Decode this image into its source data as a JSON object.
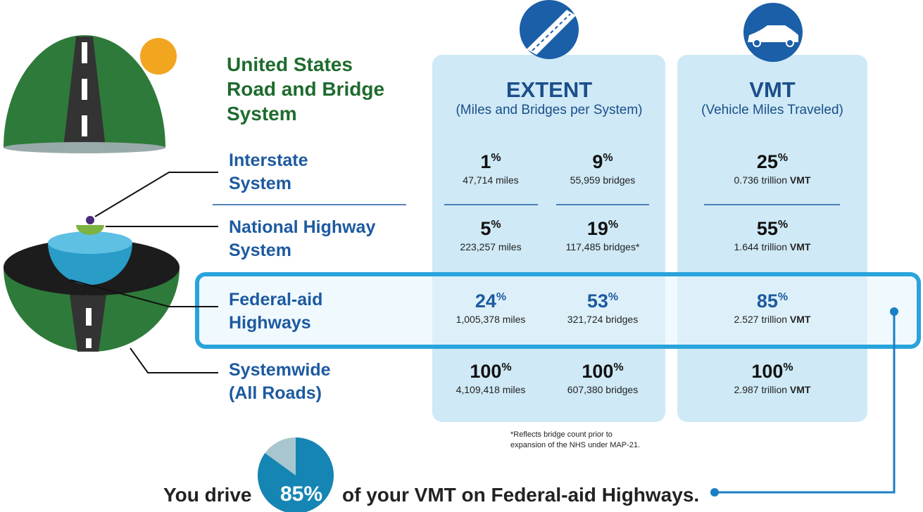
{
  "title_lines": [
    "United States",
    "Road and Bridge",
    "System"
  ],
  "percent_sign": "%",
  "columns": {
    "extent": {
      "heading": "EXTENT",
      "subheading": "(Miles and Bridges per System)"
    },
    "vmt": {
      "heading": "VMT",
      "subheading": "(Vehicle Miles Traveled)"
    }
  },
  "rows": [
    {
      "name_lines": [
        "Interstate",
        "System"
      ],
      "miles": {
        "pct": "1",
        "label": "47,714 miles"
      },
      "bridges": {
        "pct": "9",
        "label": "55,959 bridges"
      },
      "vmt": {
        "pct": "25",
        "amount": "0.736 trillion",
        "unit": "VMT"
      }
    },
    {
      "name_lines": [
        "National Highway",
        "System"
      ],
      "miles": {
        "pct": "5",
        "label": "223,257 miles"
      },
      "bridges": {
        "pct": "19",
        "label": "117,485 bridges*"
      },
      "vmt": {
        "pct": "55",
        "amount": "1.644 trillion",
        "unit": "VMT"
      }
    },
    {
      "name_lines": [
        "Federal-aid",
        "Highways"
      ],
      "miles": {
        "pct": "24",
        "label": "1,005,378 miles"
      },
      "bridges": {
        "pct": "53",
        "label": "321,724 bridges"
      },
      "vmt": {
        "pct": "85",
        "amount": "2.527 trillion",
        "unit": "VMT"
      }
    },
    {
      "name_lines": [
        "Systemwide",
        "(All Roads)"
      ],
      "miles": {
        "pct": "100",
        "label": "4,109,418 miles"
      },
      "bridges": {
        "pct": "100",
        "label": "607,380 bridges"
      },
      "vmt": {
        "pct": "100",
        "amount": "2.987 trillion",
        "unit": "VMT"
      }
    }
  ],
  "footnote_lines": [
    "*Reflects bridge count prior to",
    "expansion of the NHS under MAP-21."
  ],
  "bottom": {
    "before": "You drive",
    "pie_value": 85,
    "after": "of your VMT on Federal-aid Highways."
  }
}
